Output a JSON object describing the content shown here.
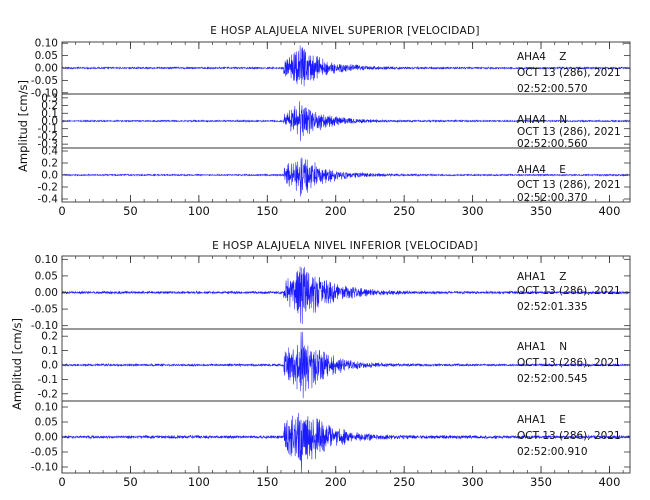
{
  "chart_data": [
    {
      "type": "line",
      "title": "E HOSP ALAJUELA NIVEL SUPERIOR [VELOCIDAD]",
      "ylabel": "Amplitud [cm/s]",
      "xlabel": "",
      "xlim": [
        0,
        415
      ],
      "xticks": [
        0,
        50,
        100,
        150,
        200,
        250,
        300,
        350,
        400
      ],
      "x_minor_step": 10,
      "grid": false,
      "traces": [
        {
          "station": "AHA4",
          "component": "Z",
          "date": "OCT 13 (286), 2021",
          "time": "02:52:00.570",
          "ylim": [
            -0.105,
            0.105
          ],
          "yticks": [
            0.1,
            0.05,
            0.0,
            -0.05,
            -0.1
          ],
          "ytick_labels": [
            "0.10",
            "0.05",
            "0.00",
            "-0.05",
            "-0.10"
          ],
          "noise": 0.003,
          "p_onset": 162,
          "peak_time": 173,
          "peak": 0.07,
          "coda": 60
        },
        {
          "station": "AHA4",
          "component": "N",
          "date": "OCT 13 (286), 2021",
          "time": "02:52:00.560",
          "ylim": [
            -0.35,
            0.35
          ],
          "yticks": [
            0.3,
            0.2,
            0.1,
            0.0,
            -0.1,
            -0.2,
            -0.3
          ],
          "ytick_labels": [
            "0.3",
            "0.2",
            "0.1",
            "0.0",
            "-0.1",
            "-0.2",
            "-0.3"
          ],
          "noise": 0.008,
          "p_onset": 162,
          "peak_time": 173,
          "peak": 0.2,
          "coda": 55
        },
        {
          "station": "AHA4",
          "component": "E",
          "date": "OCT 13 (286), 2021",
          "time": "02:52:00.370",
          "ylim": [
            -0.45,
            0.45
          ],
          "yticks": [
            0.4,
            0.2,
            0.0,
            -0.2,
            -0.4
          ],
          "ytick_labels": [
            "0.4",
            "0.2",
            "0.0",
            "-0.2",
            "-0.4"
          ],
          "noise": 0.01,
          "p_onset": 162,
          "peak_time": 174,
          "peak": 0.3,
          "coda": 55
        }
      ]
    },
    {
      "type": "line",
      "title": "E HOSP ALAJUELA NIVEL INFERIOR [VELOCIDAD]",
      "ylabel": "Amplitud [cm/s]",
      "xlabel": "",
      "xlim": [
        0,
        415
      ],
      "xticks": [
        0,
        50,
        100,
        150,
        200,
        250,
        300,
        350,
        400
      ],
      "x_minor_step": 10,
      "grid": false,
      "traces": [
        {
          "station": "AHA1",
          "component": "Z",
          "date": "OCT 13 (286), 2021",
          "time": "02:52:01.335",
          "ylim": [
            -0.11,
            0.11
          ],
          "yticks": [
            0.1,
            0.05,
            0.0,
            -0.05,
            -0.1
          ],
          "ytick_labels": [
            "0.10",
            "0.05",
            "0.00",
            "-0.05",
            "-0.10"
          ],
          "noise": 0.003,
          "p_onset": 162,
          "peak_time": 174,
          "peak": 0.08,
          "coda": 60
        },
        {
          "station": "AHA1",
          "component": "N",
          "date": "OCT 13 (286), 2021",
          "time": "02:52:00.545",
          "ylim": [
            -0.25,
            0.25
          ],
          "yticks": [
            0.2,
            0.1,
            0.0,
            -0.1,
            -0.2
          ],
          "ytick_labels": [
            "0.2",
            "0.1",
            "0.0",
            "-0.1",
            "-0.2"
          ],
          "noise": 0.006,
          "p_onset": 162,
          "peak_time": 174,
          "peak": 0.19,
          "coda": 55
        },
        {
          "station": "AHA1",
          "component": "E",
          "date": "OCT 13 (286), 2021",
          "time": "02:52:00.910",
          "ylim": [
            -0.12,
            0.12
          ],
          "yticks": [
            0.1,
            0.05,
            0.0,
            -0.05,
            -0.1
          ],
          "ytick_labels": [
            "0.10",
            "0.05",
            "0.00",
            "-0.05",
            "-0.10"
          ],
          "noise": 0.004,
          "p_onset": 162,
          "peak_time": 174,
          "peak": 0.1,
          "coda": 55
        }
      ]
    }
  ],
  "colors": {
    "trace": "#1a1aff",
    "axes": "#333333",
    "text": "#111111",
    "background": "#ffffff"
  }
}
